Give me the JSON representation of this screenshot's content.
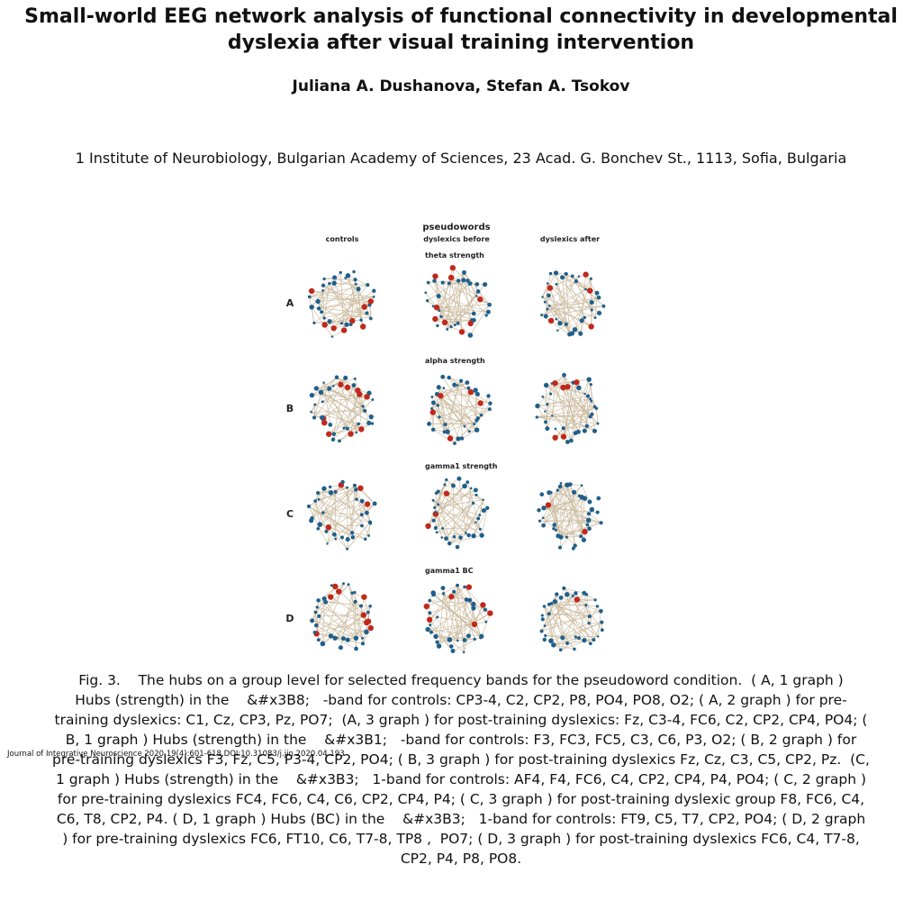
{
  "paper": {
    "title_line1": "Small-world EEG network analysis of functional connectivity in developmental",
    "title_line2": "dyslexia after visual training intervention",
    "authors": "Juliana A. Dushanova, Stefan A. Tsokov",
    "affiliation": "1 Institute of Neurobiology, Bulgarian Academy of Sciences, 23 Acad. G. Bonchev St., 1113, Sofia, Bulgaria"
  },
  "figure": {
    "condition": "pseudowords",
    "columns": [
      "controls",
      "dyslexics before",
      "dyslexics after"
    ],
    "rows": [
      {
        "letter": "A",
        "band": "theta   strength"
      },
      {
        "letter": "B",
        "band": "alpha   strength"
      },
      {
        "letter": "C",
        "band": "gamma1  strength"
      },
      {
        "letter": "D",
        "band": "gamma1   BC"
      }
    ],
    "colors": {
      "edge": "#c9b99c",
      "node": "#1f5f8b",
      "hub": "#c0281c"
    }
  },
  "caption": {
    "lines": [
      "Fig. 3.    The hubs on a group level for selected frequency bands for the pseudoword condition.  ( A, 1 graph )",
      "Hubs (strength) in the    &#x3B8;   -band for controls: CP3-4, C2, CP2, P8, PO4, PO8, O2; ( A, 2 graph ) for pre-",
      "training dyslexics: C1, Cz, CP3, Pz, PO7;  (A, 3 graph ) for post-training dyslexics: Fz, C3-4, FC6, C2, CP2, CP4, PO4; (",
      "B, 1 graph ) Hubs (strength) in the    &#x3B1;   -band for controls: F3, FC3, FC5, C3, C6, P3, O2; ( B, 2 graph ) for",
      "pre-training dyslexics F3, Fz, C5, P3-4, CP2, PO4; ( B, 3 graph ) for post-training dyslexics Fz, Cz, C3, C5, CP2, Pz.  (C,",
      "1 graph ) Hubs (strength) in the    &#x3B3;   1-band for controls: AF4, F4, FC6, C4, CP2, CP4, P4, PO4; ( C, 2 graph )",
      "for pre-training dyslexics FC4, FC6, C4, C6, CP2, CP4, P4; ( C, 3 graph ) for post-training dyslexic group F8, FC6, C4,",
      "C6, T8, CP2, P4. ( D, 1 graph ) Hubs (BC) in the    &#x3B3;   1-band for controls: FT9, C5, T7, CP2, PO4; ( D, 2 graph",
      ") for pre-training dyslexics FC6, FT10, C6, T7-8, TP8 ,  PO7; ( D, 3 graph ) for post-training dyslexics FC6, C4, T7-8,",
      "CP2, P4, P8, PO8."
    ]
  },
  "footer": "Journal of Integrative Neuroscience 2020,19(4):601-618.DOI:10.31083/j.jin.2020.04.193"
}
